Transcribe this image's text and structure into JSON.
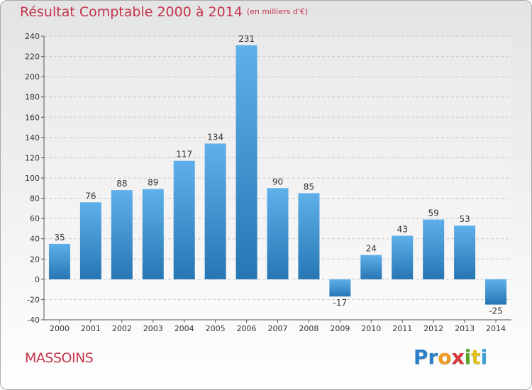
{
  "title": "Résultat Comptable 2000 à 2014",
  "subtitle": "(en milliers d'€)",
  "place": "MASSOINS",
  "logo": {
    "text": "Proxiti",
    "letters": [
      {
        "ch": "P",
        "color": "#2a7fc8"
      },
      {
        "ch": "r",
        "color": "#2a7fc8"
      },
      {
        "ch": "o",
        "color": "#f29a1f"
      },
      {
        "ch": "x",
        "color": "#d63a3a"
      },
      {
        "ch": "i",
        "color": "#5aa82a"
      },
      {
        "ch": "t",
        "color": "#e0c21c"
      },
      {
        "ch": "i",
        "color": "#3aa0d8"
      }
    ]
  },
  "colors": {
    "bar_top": "#5fb0ea",
    "bar_bottom": "#2676b4",
    "title": "#c4344c"
  },
  "chart_data": {
    "type": "bar",
    "title": "Résultat Comptable 2000 à 2014",
    "ylabel": "en milliers d'€",
    "xlabel": "",
    "ylim": [
      -40,
      240
    ],
    "ytick_step": 20,
    "grid": true,
    "categories": [
      "2000",
      "2001",
      "2002",
      "2003",
      "2004",
      "2005",
      "2006",
      "2007",
      "2008",
      "2009",
      "2010",
      "2011",
      "2012",
      "2013",
      "2014"
    ],
    "values": [
      35,
      76,
      88,
      89,
      117,
      134,
      231,
      90,
      85,
      -17,
      24,
      43,
      59,
      53,
      -25
    ],
    "data_labels": [
      "35",
      "76",
      "88",
      "89",
      "117",
      "134",
      "231",
      "90",
      "85",
      "-17",
      "24",
      "43",
      "59",
      "53",
      "-25"
    ]
  }
}
